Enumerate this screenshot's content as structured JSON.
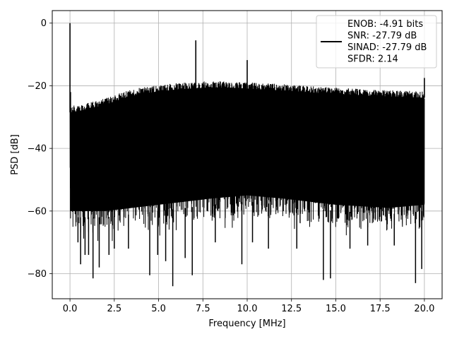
{
  "chart_data": {
    "type": "line",
    "xlabel": "Frequency [MHz]",
    "ylabel": "PSD [dB]",
    "xlim": [
      -1.0,
      21.0
    ],
    "ylim": [
      -88,
      4
    ],
    "xticks": [
      0.0,
      2.5,
      5.0,
      7.5,
      10.0,
      12.5,
      15.0,
      17.5,
      20.0
    ],
    "xtick_labels": [
      "0.0",
      "2.5",
      "5.0",
      "7.5",
      "10.0",
      "12.5",
      "15.0",
      "17.5",
      "20.0"
    ],
    "yticks": [
      0,
      -20,
      -40,
      -60,
      -80
    ],
    "ytick_labels": [
      "0",
      "−20",
      "−40",
      "−60",
      "−80"
    ],
    "grid": true,
    "legend_position": "top-right",
    "legend_lines": [
      "ENOB: -4.91 bits",
      "SNR: -27.79 dB",
      "SINAD: -27.79 dB",
      "SFDR: 2.14"
    ],
    "series_color": "#000000",
    "spectrum": {
      "x_start": 0.0,
      "x_end": 20.0,
      "upper_envelope": [
        [
          0.0,
          -26.5
        ],
        [
          0.5,
          -26.0
        ],
        [
          1.0,
          -25.5
        ],
        [
          1.5,
          -24.8
        ],
        [
          2.0,
          -24.0
        ],
        [
          2.5,
          -23.0
        ],
        [
          3.0,
          -22.0
        ],
        [
          3.5,
          -21.2
        ],
        [
          4.0,
          -20.6
        ],
        [
          5.0,
          -19.8
        ],
        [
          6.0,
          -19.2
        ],
        [
          7.0,
          -18.8
        ],
        [
          8.0,
          -18.5
        ],
        [
          9.0,
          -18.6
        ],
        [
          10.0,
          -18.9
        ],
        [
          11.0,
          -19.2
        ],
        [
          12.0,
          -19.5
        ],
        [
          13.0,
          -19.9
        ],
        [
          14.0,
          -20.3
        ],
        [
          15.0,
          -20.6
        ],
        [
          16.0,
          -20.9
        ],
        [
          17.0,
          -21.2
        ],
        [
          18.0,
          -21.4
        ],
        [
          19.0,
          -21.6
        ],
        [
          20.0,
          -21.8
        ]
      ],
      "lower_floor": [
        [
          0.0,
          -64.0
        ],
        [
          2.0,
          -64.0
        ],
        [
          5.0,
          -62.0
        ],
        [
          8.0,
          -60.0
        ],
        [
          10.0,
          -59.0
        ],
        [
          12.0,
          -60.0
        ],
        [
          15.0,
          -62.0
        ],
        [
          18.0,
          -63.0
        ],
        [
          20.0,
          -62.0
        ]
      ],
      "peaks": [
        [
          0.0,
          0.0
        ],
        [
          0.03,
          -22.0
        ],
        [
          7.1,
          -5.5
        ],
        [
          10.0,
          -11.8
        ],
        [
          20.0,
          -17.5
        ]
      ],
      "deep_dips": [
        [
          0.45,
          -70
        ],
        [
          0.6,
          -77
        ],
        [
          0.85,
          -74
        ],
        [
          1.05,
          -74
        ],
        [
          1.3,
          -81.5
        ],
        [
          1.65,
          -78
        ],
        [
          2.2,
          -74
        ],
        [
          2.5,
          -72
        ],
        [
          3.3,
          -72
        ],
        [
          4.5,
          -80.5
        ],
        [
          4.95,
          -74
        ],
        [
          5.4,
          -76
        ],
        [
          5.8,
          -84
        ],
        [
          6.5,
          -75
        ],
        [
          6.9,
          -80.5
        ],
        [
          8.2,
          -70
        ],
        [
          9.7,
          -77
        ],
        [
          10.3,
          -70
        ],
        [
          11.2,
          -72
        ],
        [
          12.8,
          -72
        ],
        [
          14.3,
          -82
        ],
        [
          14.7,
          -81.5
        ],
        [
          15.8,
          -72
        ],
        [
          16.8,
          -71
        ],
        [
          18.3,
          -71
        ],
        [
          19.5,
          -83
        ],
        [
          19.85,
          -78.5
        ]
      ]
    }
  }
}
